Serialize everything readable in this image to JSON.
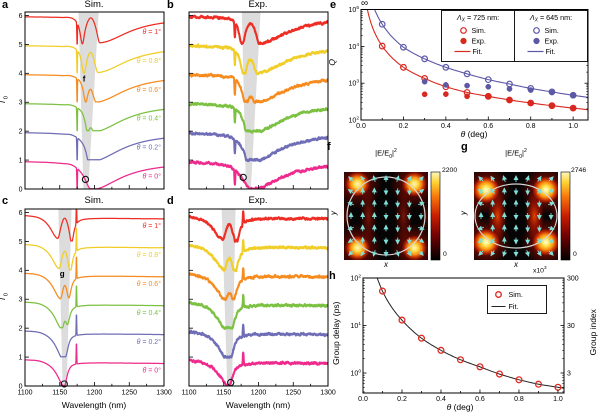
{
  "panels": {
    "a": {
      "label": "a",
      "title": "Sim."
    },
    "b": {
      "label": "b",
      "title": "Exp."
    },
    "c": {
      "label": "c",
      "title": "Sim."
    },
    "d": {
      "label": "d",
      "title": "Exp."
    },
    "e": {
      "label": "e"
    },
    "f": {
      "label": "f"
    },
    "g": {
      "label": "g"
    },
    "h": {
      "label": "h"
    }
  },
  "labels": {
    "wavelength": "Wavelength (nm)",
    "theta_sym": "θ",
    "theta_rest": " (deg)",
    "T_main": "T",
    "T_sub": "0",
    "Q": "Q",
    "group_delay": "Group delay (ps)",
    "group_index": "Group index",
    "e_times": "x10",
    "e_times_sup": "3",
    "infinity": "∞",
    "field_title_pre": "|E/E",
    "field_title_sub": "0",
    "field_title_bar": "|",
    "field_title_sup": "2",
    "x_axis": "x",
    "y_axis": "y"
  },
  "field_maps": {
    "f": {
      "shape": "circle",
      "cbar_max": "2200",
      "cbar_min": "0"
    },
    "g": {
      "shape": "ellipse",
      "cbar_max": "2746",
      "cbar_min": "0"
    }
  },
  "chart_data": [
    {
      "id": "a",
      "type": "spectra",
      "panel_title": "Sim.",
      "mirror": false,
      "experimental": false,
      "xlim": [
        1100,
        1300
      ],
      "ylim": [
        0,
        6.1
      ],
      "xticks": [
        1100,
        1150,
        1200,
        1250,
        1300
      ],
      "yticks": [
        0,
        1,
        2,
        3,
        4,
        5,
        6
      ],
      "show_xlabels": false,
      "show_ylabels": true,
      "show_curve_labels": true,
      "label_dy": 0.36,
      "center_nm": 1195,
      "narrow_nm": 1175,
      "narrow_amp": -0.95,
      "band": {
        "bottom": [
          1184,
          1191
        ],
        "top": [
          1177,
          1206
        ]
      },
      "marker": {
        "x": 1187,
        "y": 0.33
      },
      "annotation": {
        "text": "f",
        "x": 1185,
        "y": 3.72
      },
      "curves": [
        {
          "theta": 1.0,
          "label": "θ = 1°",
          "color": "#ee2d24",
          "offset": 5
        },
        {
          "theta": 0.8,
          "label": "θ = 0.8°",
          "color": "#f0cd27",
          "offset": 4
        },
        {
          "theta": 0.6,
          "label": "θ = 0.6°",
          "color": "#f68b1f",
          "offset": 3
        },
        {
          "theta": 0.4,
          "label": "θ = 0.4°",
          "color": "#7cc142",
          "offset": 2
        },
        {
          "theta": 0.2,
          "label": "θ = 0.2°",
          "color": "#6f6db5",
          "offset": 1
        },
        {
          "theta": 0.0,
          "label": "θ = 0°",
          "color": "#ee2a8c",
          "offset": 0
        }
      ]
    },
    {
      "id": "b",
      "type": "spectra",
      "panel_title": "Exp.",
      "mirror": false,
      "experimental": true,
      "seed": 5,
      "xlim": [
        1100,
        1300
      ],
      "ylim": [
        0,
        6.1
      ],
      "xticks": [
        1100,
        1150,
        1200,
        1250,
        1300
      ],
      "yticks": [
        0,
        1,
        2,
        3,
        4,
        5,
        6
      ],
      "show_xlabels": false,
      "show_ylabels": false,
      "show_curve_labels": false,
      "label_dy": 0.36,
      "center_nm": 1189,
      "narrow_nm": 1166,
      "narrow_amp": -0.5,
      "band": {
        "bottom": [
          1182,
          1189
        ],
        "top": [
          1176,
          1203
        ]
      },
      "marker": {
        "x": 1178,
        "y": 0.4
      },
      "curves": [
        {
          "theta": 1.0,
          "label": "θ = 1°",
          "color": "#ee2d24",
          "offset": 5
        },
        {
          "theta": 0.8,
          "label": "θ = 0.8°",
          "color": "#f0cd27",
          "offset": 4
        },
        {
          "theta": 0.6,
          "label": "θ = 0.6°",
          "color": "#f68b1f",
          "offset": 3
        },
        {
          "theta": 0.4,
          "label": "θ = 0.4°",
          "color": "#7cc142",
          "offset": 2
        },
        {
          "theta": 0.2,
          "label": "θ = 0.2°",
          "color": "#6f6db5",
          "offset": 1
        },
        {
          "theta": 0.0,
          "label": "θ = 0°",
          "color": "#ee2a8c",
          "offset": 0
        }
      ]
    },
    {
      "id": "c",
      "type": "spectra",
      "panel_title": "Sim.",
      "mirror": true,
      "experimental": false,
      "xlim": [
        1100,
        1300
      ],
      "ylim": [
        0,
        6.1
      ],
      "xticks": [
        1100,
        1150,
        1200,
        1250,
        1300
      ],
      "yticks": [
        0,
        1,
        2,
        3,
        4,
        5,
        6
      ],
      "show_xlabels": true,
      "show_ylabels": true,
      "show_curve_labels": true,
      "label_dy": 0.46,
      "center_nm": 1157,
      "narrow_nm": 1174,
      "narrow_amp": 0.95,
      "band": {
        "bottom": [
          1154,
          1160
        ],
        "top": [
          1148,
          1167
        ]
      },
      "marker": {
        "x": 1156.5,
        "y": 0.07
      },
      "annotation": {
        "text": "g",
        "x": 1153.5,
        "y": 3.78
      },
      "curves": [
        {
          "theta": 1.0,
          "label": "θ = 1°",
          "color": "#ee2d24",
          "offset": 5
        },
        {
          "theta": 0.8,
          "label": "θ = 0.8°",
          "color": "#f0cd27",
          "offset": 4
        },
        {
          "theta": 0.6,
          "label": "θ = 0.6°",
          "color": "#f68b1f",
          "offset": 3
        },
        {
          "theta": 0.4,
          "label": "θ = 0.4°",
          "color": "#7cc142",
          "offset": 2
        },
        {
          "theta": 0.2,
          "label": "θ = 0.2°",
          "color": "#6f6db5",
          "offset": 1
        },
        {
          "theta": 0.0,
          "label": "θ = 0°",
          "color": "#ee2a8c",
          "offset": 0
        }
      ]
    },
    {
      "id": "d",
      "type": "spectra",
      "panel_title": "Exp.",
      "mirror": true,
      "experimental": true,
      "seed": 11,
      "xlim": [
        1100,
        1300
      ],
      "ylim": [
        0,
        6.1
      ],
      "xticks": [
        1100,
        1150,
        1200,
        1250,
        1300
      ],
      "yticks": [
        0,
        1,
        2,
        3,
        4,
        5,
        6
      ],
      "show_xlabels": true,
      "show_ylabels": false,
      "show_curve_labels": false,
      "label_dy": 0.46,
      "center_nm": 1158,
      "narrow_nm": 1178,
      "narrow_amp": 0.42,
      "band": {
        "bottom": [
          1155,
          1162
        ],
        "top": [
          1147,
          1167
        ]
      },
      "marker": {
        "x": 1160,
        "y": 0.12
      },
      "curves": [
        {
          "theta": 1.0,
          "label": "θ = 1°",
          "color": "#ee2d24",
          "offset": 5
        },
        {
          "theta": 0.8,
          "label": "θ = 0.8°",
          "color": "#f0cd27",
          "offset": 4
        },
        {
          "theta": 0.6,
          "label": "θ = 0.6°",
          "color": "#f68b1f",
          "offset": 3
        },
        {
          "theta": 0.4,
          "label": "θ = 0.4°",
          "color": "#7cc142",
          "offset": 2
        },
        {
          "theta": 0.2,
          "label": "θ = 0.2°",
          "color": "#6f6db5",
          "offset": 1
        },
        {
          "theta": 0.0,
          "label": "θ = 0°",
          "color": "#ee2a8c",
          "offset": 0
        }
      ]
    },
    {
      "id": "e",
      "type": "qplot",
      "xlabel": "θ (deg)",
      "ylabel": "Q",
      "infinity": "∞",
      "xlim": [
        0,
        1.07
      ],
      "xticks": [
        0,
        0.2,
        0.4,
        0.6,
        0.8,
        1.0
      ],
      "yticks_exp": [
        2,
        3,
        4,
        5
      ],
      "series": [
        {
          "name": "sim725",
          "marker": "open",
          "color": "#d8281f",
          "x": [
            0.1,
            0.2,
            0.3,
            0.4,
            0.5,
            0.6,
            0.7,
            0.8,
            0.9,
            1.0
          ],
          "y": [
            10200,
            2700,
            1350,
            800,
            560,
            440,
            350,
            290,
            245,
            210
          ]
        },
        {
          "name": "exp725",
          "marker": "filled",
          "color": "#d8281f",
          "x": [
            0.3,
            0.4,
            0.5,
            0.6,
            0.7,
            0.8,
            0.9,
            1.0
          ],
          "y": [
            500,
            505,
            440,
            430,
            350,
            285,
            250,
            215
          ]
        },
        {
          "name": "fit725",
          "marker": "line",
          "uses": "sim725",
          "color": "#d8281f"
        },
        {
          "name": "sim645",
          "marker": "open",
          "color": "#5d58a6",
          "x": [
            0.1,
            0.2,
            0.3,
            0.4,
            0.5,
            0.6,
            0.7,
            0.8,
            0.9,
            1.0
          ],
          "y": [
            40000,
            9500,
            4600,
            2700,
            1800,
            1250,
            950,
            720,
            580,
            470
          ]
        },
        {
          "name": "exp645",
          "marker": "filled",
          "color": "#5d58a6",
          "x": [
            0.3,
            0.4,
            0.5,
            0.6,
            0.7,
            0.8,
            0.9,
            1.0
          ],
          "y": [
            1100,
            900,
            860,
            800,
            700,
            650,
            560,
            470
          ]
        },
        {
          "name": "fit645",
          "marker": "line",
          "uses": "sim645",
          "color": "#5d58a6"
        }
      ],
      "legend": {
        "groups": [
          {
            "title_sym": "Λ",
            "title_sub": "X",
            "title_rest": " = 725 nm:",
            "color": "#d8281f",
            "items": [
              "Sim.",
              "Exp.",
              "Fit."
            ]
          },
          {
            "title_sym": "Λ",
            "title_sub": "X",
            "title_rest": " = 645 nm:",
            "color": "#5d58a6",
            "items": [
              "Sim.",
              "Exp.",
              "Fit."
            ]
          }
        ]
      }
    },
    {
      "id": "h",
      "type": "delay",
      "xlabel": "θ (deg)",
      "ylabel_left": "Group delay (ps)",
      "ylabel_right": "Group index",
      "right_scale": "x10",
      "right_scale_sup": "3",
      "xlim": [
        0,
        1.03
      ],
      "xticks": [
        0,
        0.2,
        0.4,
        0.6,
        0.8,
        1.0
      ],
      "yticks_exp": [
        0,
        1,
        2
      ],
      "right_ticks": [
        {
          "exp": 2,
          "label": "300"
        },
        {
          "exp": 1,
          "label": "30"
        },
        {
          "exp": 0,
          "label": "3"
        }
      ],
      "sim": {
        "label": "Sim.",
        "color": "#e02a21",
        "x": [
          0.1,
          0.2,
          0.3,
          0.4,
          0.5,
          0.6,
          0.7,
          0.8,
          0.9,
          1.0
        ],
        "y": [
          53,
          13,
          5.4,
          3.0,
          1.9,
          1.35,
          0.95,
          0.72,
          0.58,
          0.5
        ]
      },
      "fit": {
        "label": "Fit.",
        "color": "#222222"
      }
    }
  ]
}
